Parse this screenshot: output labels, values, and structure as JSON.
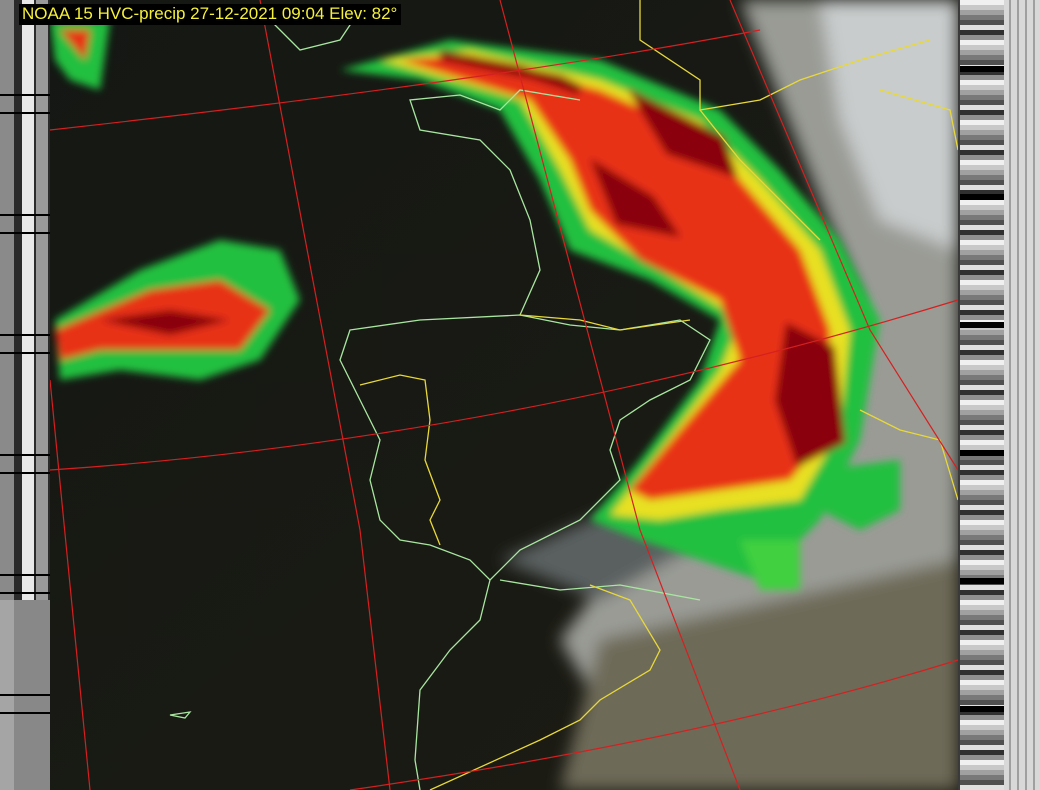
{
  "overlay": {
    "title": "NOAA 15 HVC-precip 27-12-2021 09:04 Elev: 82°"
  },
  "colors": {
    "grid": "#d42020",
    "coastline": "#a8e6a0",
    "borders": "#e8d83a",
    "precip_heavy": "#7a0010",
    "precip_moderate": "#e82010",
    "precip_light": "#f0e020",
    "precip_trace": "#20d040",
    "title_text": "#f5f03a"
  }
}
